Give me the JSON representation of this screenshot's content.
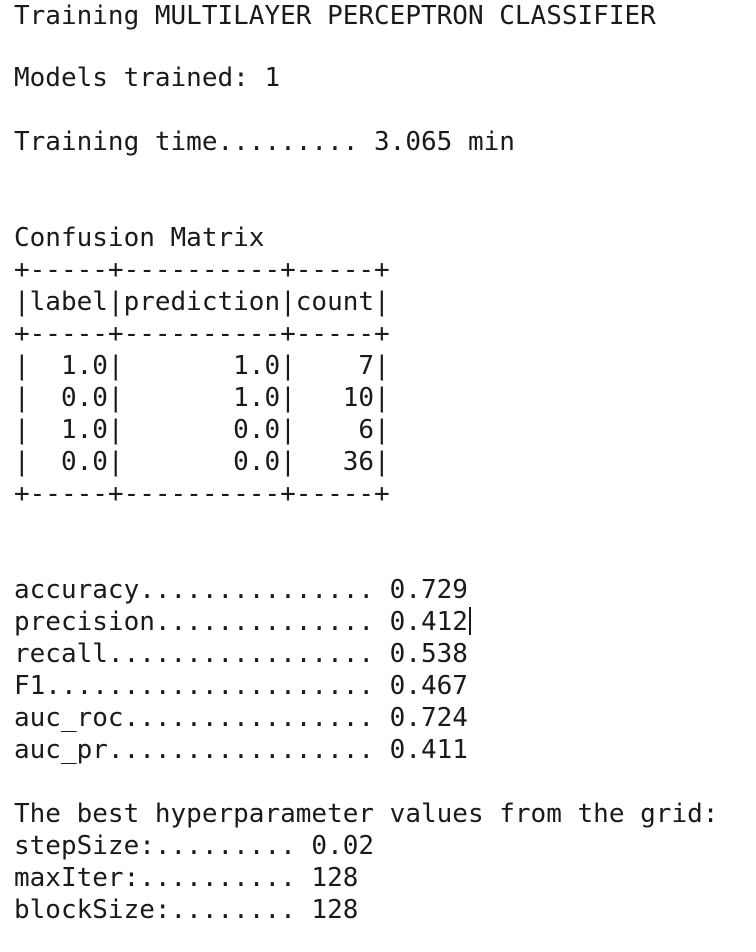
{
  "output": {
    "title": "Training MULTILAYER PERCEPTRON CLASSIFIER",
    "models_trained": "Models trained: 1",
    "training_time": "Training time......... 3.065 min",
    "confusion_matrix": {
      "heading": "Confusion Matrix",
      "border": "+-----+----------+-----+",
      "header_row": "|label|prediction|count|",
      "rows": [
        "|  1.0|       1.0|    7|",
        "|  0.0|       1.0|   10|",
        "|  1.0|       0.0|    6|",
        "|  0.0|       0.0|   36|"
      ]
    },
    "metrics": [
      "accuracy............... 0.729",
      "precision.............. 0.412",
      "recall................. 0.538",
      "F1..................... 0.467",
      "auc_roc................ 0.724",
      "auc_pr................. 0.411"
    ],
    "best_params_heading": "The best hyperparameter values from the grid:",
    "best_params": [
      "stepSize:......... 0.02",
      "maxIter:.......... 128",
      "blockSize:........ 128"
    ]
  }
}
